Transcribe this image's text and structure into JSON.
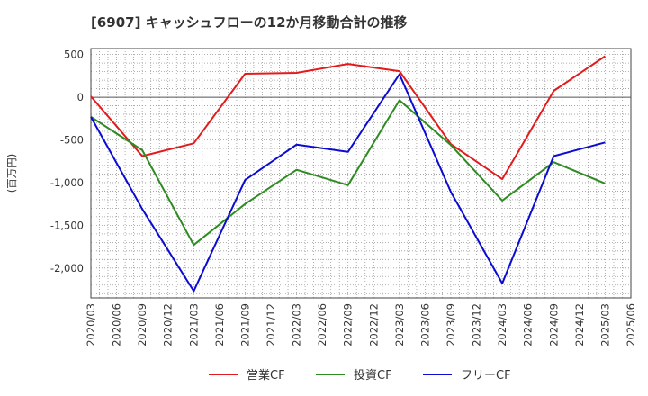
{
  "chart_data": {
    "type": "line",
    "title": "[6907]  キャッシュフローの12か月移動合計の推移",
    "ylabel": "(百万円)",
    "xlabel": "",
    "ylim": [
      -2350,
      570
    ],
    "yticks": [
      500,
      0,
      -500,
      -1000,
      -1500,
      -2000
    ],
    "ytick_labels": [
      "500",
      "0",
      "-500",
      "-1,000",
      "-1,500",
      "-2,000"
    ],
    "categories": [
      "2020/03",
      "2020/06",
      "2020/09",
      "2020/12",
      "2021/03",
      "2021/06",
      "2021/09",
      "2021/12",
      "2022/03",
      "2022/06",
      "2022/09",
      "2022/12",
      "2023/03",
      "2023/06",
      "2023/09",
      "2023/12",
      "2024/03",
      "2024/06",
      "2024/09",
      "2024/12",
      "2025/03",
      "2025/06"
    ],
    "series": [
      {
        "name": "営業CF",
        "color": "#e31a1c",
        "values": [
          10,
          null,
          -690,
          null,
          -540,
          null,
          275,
          null,
          285,
          null,
          390,
          null,
          305,
          null,
          -550,
          null,
          -960,
          null,
          75,
          null,
          480,
          null
        ]
      },
      {
        "name": "投資CF",
        "color": "#2e8b22",
        "values": [
          -230,
          null,
          -620,
          null,
          -1730,
          null,
          -1250,
          null,
          -850,
          null,
          -1030,
          null,
          -35,
          null,
          -560,
          null,
          -1210,
          null,
          -760,
          null,
          -1010,
          null
        ]
      },
      {
        "name": "フリーCF",
        "color": "#0b0bd1",
        "values": [
          -230,
          null,
          -1310,
          null,
          -2270,
          null,
          -970,
          null,
          -555,
          null,
          -640,
          null,
          270,
          null,
          -1110,
          null,
          -2180,
          null,
          -690,
          null,
          -530,
          null
        ]
      }
    ],
    "grid": true,
    "legend_position": "bottom"
  }
}
